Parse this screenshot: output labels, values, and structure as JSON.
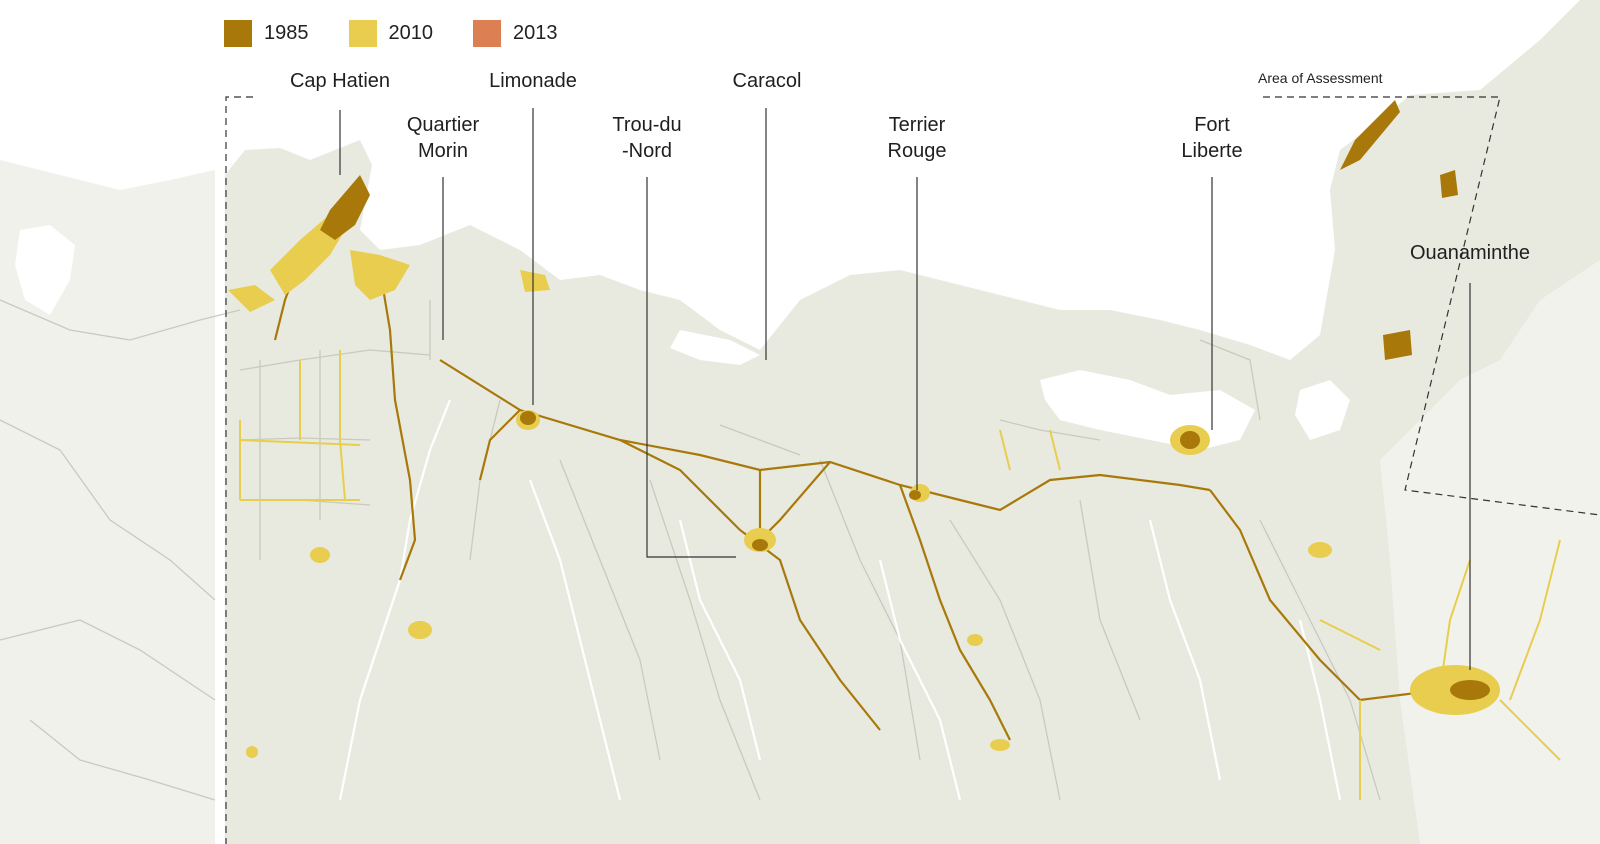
{
  "legend": [
    {
      "year": "1985",
      "color": "#a8780a"
    },
    {
      "year": "2010",
      "color": "#e8cd4e"
    },
    {
      "year": "2013",
      "color": "#dc7f52"
    }
  ],
  "area_label": "Area of Assessment",
  "cities": [
    {
      "id": "cap-hatien",
      "label": "Cap Hatien"
    },
    {
      "id": "quartier-morin",
      "label": "Quartier\nMorin"
    },
    {
      "id": "limonade",
      "label": "Limonade"
    },
    {
      "id": "trou-du-nord",
      "label": "Trou-du\n-Nord"
    },
    {
      "id": "caracol",
      "label": "Caracol"
    },
    {
      "id": "terrier-rouge",
      "label": "Terrier\nRouge"
    },
    {
      "id": "fort-liberte",
      "label": "Fort\nLiberte"
    },
    {
      "id": "ouanaminthe",
      "label": "Ouanaminthe"
    }
  ],
  "colors": {
    "land": "#e8eadf",
    "land_light": "#f1f2ec",
    "sea": "#ffffff",
    "roads": "#c9cabf",
    "rivers": "#ffffff",
    "leader": "#333333"
  }
}
